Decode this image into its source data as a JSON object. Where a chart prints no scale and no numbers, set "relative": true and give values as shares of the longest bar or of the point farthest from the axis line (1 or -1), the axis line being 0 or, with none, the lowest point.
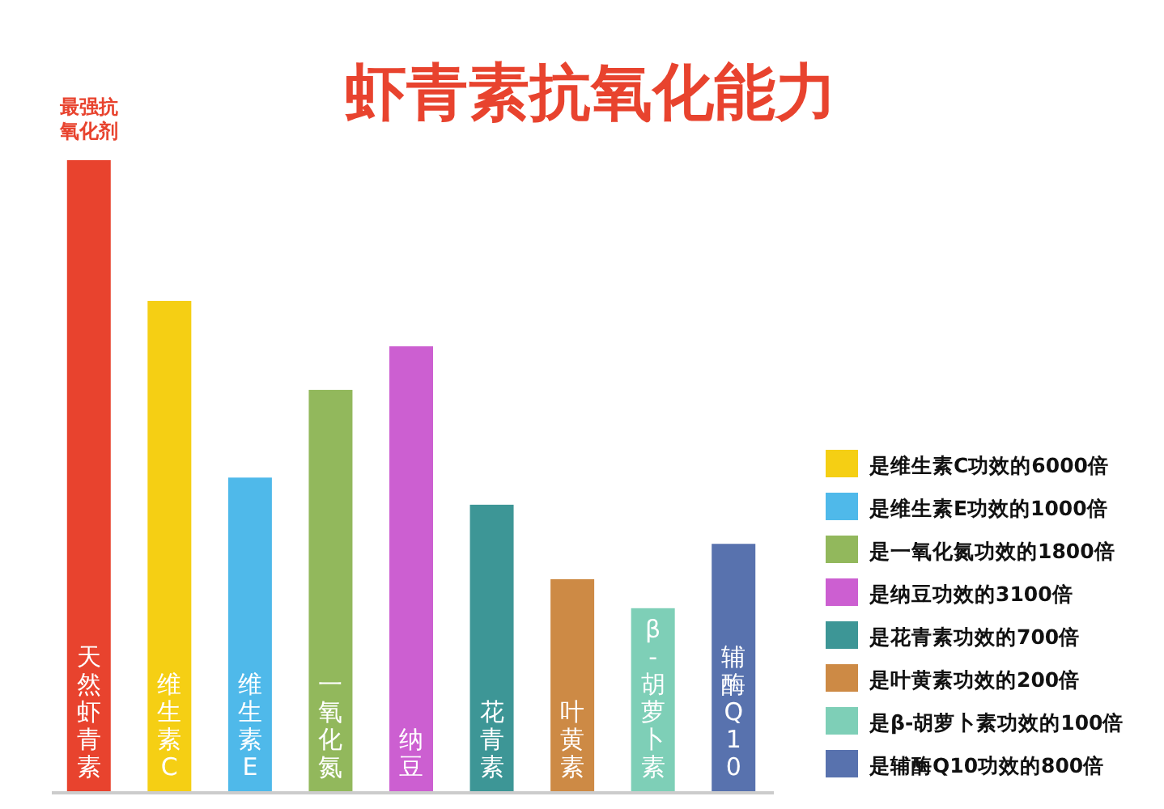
{
  "chart_data": {
    "type": "bar",
    "title": "虾青素抗氧化能力",
    "relative": true,
    "legend": "bottom right",
    "data_labels": false,
    "categories": [
      "天然虾青素",
      "维生素C",
      "维生素E",
      "一氧化氮",
      "纳豆",
      "花青素",
      "叶黄素",
      "β-胡萝卜素",
      "辅酶Q10"
    ],
    "series": [
      {
        "color": "#e8432e",
        "values": [
          1,
          null,
          null,
          null,
          null,
          null,
          null,
          null,
          null
        ]
      },
      {
        "name": "是维生素C功效的6000倍",
        "color": "#f5cf14",
        "values": [
          null,
          0.777,
          null,
          null,
          null,
          null,
          null,
          null,
          null
        ]
      },
      {
        "name": "是维生素E功效的1000倍",
        "color": "#4fb9ea",
        "values": [
          null,
          null,
          0.497,
          null,
          null,
          null,
          null,
          null,
          null
        ]
      },
      {
        "name": "是一氧化氮功效的1800倍",
        "color": "#92b85c",
        "values": [
          null,
          null,
          null,
          0.636,
          null,
          null,
          null,
          null,
          null
        ]
      },
      {
        "name": "是纳豆功效的3100倍",
        "color": "#cc5fd1",
        "values": [
          null,
          null,
          null,
          null,
          0.705,
          null,
          null,
          null,
          null
        ]
      },
      {
        "name": "是花青素功效的700倍",
        "color": "#3d9696",
        "values": [
          null,
          null,
          null,
          null,
          null,
          0.454,
          null,
          null,
          null
        ]
      },
      {
        "name": "是叶黄素功效的200倍",
        "color": "#cd8a45",
        "values": [
          null,
          null,
          null,
          null,
          null,
          null,
          0.336,
          null,
          null
        ]
      },
      {
        "name": "是β-胡萝卜素功效的100倍",
        "color": "#7ecfb7",
        "values": [
          null,
          null,
          null,
          null,
          null,
          null,
          null,
          0.29,
          null
        ]
      },
      {
        "name": "是辅酶Q10功效的800倍",
        "color": "#5872ae",
        "values": [
          null,
          null,
          null,
          null,
          null,
          null,
          null,
          null,
          0.392
        ]
      }
    ],
    "annotations": [
      {
        "text": "最强抗氧化剂",
        "x": "天然虾青素",
        "y": 1
      }
    ]
  }
}
